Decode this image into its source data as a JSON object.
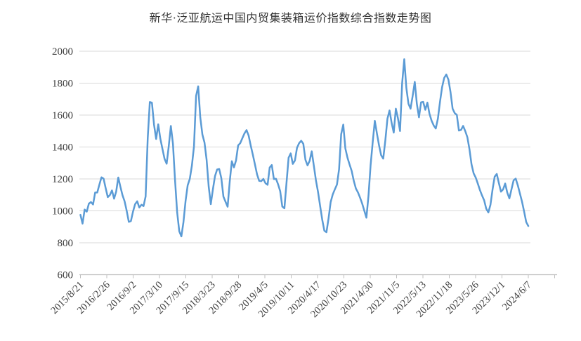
{
  "chart_data": {
    "type": "line",
    "title": "新华·泛亚航运中国内贸集装箱运价指数综合指数走势图",
    "ylim": [
      600,
      2000
    ],
    "ytick_step": 200,
    "yticks": [
      600,
      800,
      1000,
      1200,
      1400,
      1600,
      1800,
      2000
    ],
    "x_tick_labels": [
      "2015/8/21",
      "2016/2/26",
      "2016/9/2",
      "2017/3/10",
      "2017/9/15",
      "2018/3/23",
      "2018/9/28",
      "2019/4/5",
      "2019/10/11",
      "2020/4/17",
      "2020/10/23",
      "2021/4/30",
      "2021/11/5",
      "2022/5/13",
      "2022/11/18",
      "2023/5/26",
      "2023/12/1",
      "2024/6/7"
    ],
    "x_start": "2015/8/21",
    "x_end": "2024/6/7",
    "sampling": "weekly index, traced at ~2-week resolution, evenly spaced from x_start to x_end",
    "grid": true,
    "legend": false,
    "line_color": "#5B9BD5",
    "grid_color": "#D9D9D9",
    "axis_color": "#BFBFBF",
    "label_color": "#404040",
    "title_color": "#333333",
    "background": "#FFFFFF",
    "series": [
      {
        "name": "综合指数",
        "values": [
          975,
          920,
          1008,
          995,
          1045,
          1055,
          1040,
          1115,
          1115,
          1164,
          1210,
          1202,
          1142,
          1086,
          1099,
          1128,
          1076,
          1121,
          1209,
          1151,
          1098,
          1060,
          1000,
          931,
          936,
          995,
          1042,
          1060,
          1021,
          1038,
          1030,
          1090,
          1455,
          1682,
          1677,
          1540,
          1450,
          1542,
          1452,
          1388,
          1326,
          1295,
          1405,
          1532,
          1420,
          1190,
          990,
          872,
          840,
          930,
          1062,
          1160,
          1200,
          1283,
          1404,
          1720,
          1780,
          1585,
          1478,
          1428,
          1320,
          1152,
          1042,
          1135,
          1218,
          1259,
          1262,
          1205,
          1089,
          1057,
          1026,
          1183,
          1311,
          1272,
          1316,
          1410,
          1424,
          1455,
          1485,
          1506,
          1471,
          1408,
          1351,
          1290,
          1228,
          1188,
          1186,
          1200,
          1173,
          1163,
          1271,
          1287,
          1199,
          1201,
          1166,
          1123,
          1027,
          1016,
          1175,
          1333,
          1360,
          1294,
          1315,
          1395,
          1424,
          1439,
          1420,
          1320,
          1285,
          1313,
          1373,
          1283,
          1191,
          1118,
          1030,
          944,
          876,
          866,
          953,
          1055,
          1103,
          1135,
          1165,
          1260,
          1480,
          1540,
          1390,
          1333,
          1290,
          1250,
          1188,
          1140,
          1115,
          1082,
          1045,
          1001,
          957,
          1096,
          1287,
          1430,
          1564,
          1485,
          1411,
          1349,
          1327,
          1441,
          1577,
          1629,
          1551,
          1490,
          1640,
          1580,
          1500,
          1800,
          1950,
          1770,
          1671,
          1640,
          1720,
          1808,
          1670,
          1586,
          1680,
          1683,
          1633,
          1678,
          1608,
          1565,
          1535,
          1516,
          1578,
          1683,
          1775,
          1833,
          1854,
          1822,
          1744,
          1640,
          1612,
          1601,
          1503,
          1507,
          1532,
          1500,
          1462,
          1387,
          1291,
          1235,
          1208,
          1170,
          1130,
          1096,
          1066,
          1013,
          990,
          1038,
          1134,
          1214,
          1231,
          1174,
          1120,
          1134,
          1171,
          1114,
          1078,
          1135,
          1191,
          1202,
          1160,
          1109,
          1058,
          996,
          930,
          905
        ]
      }
    ]
  }
}
